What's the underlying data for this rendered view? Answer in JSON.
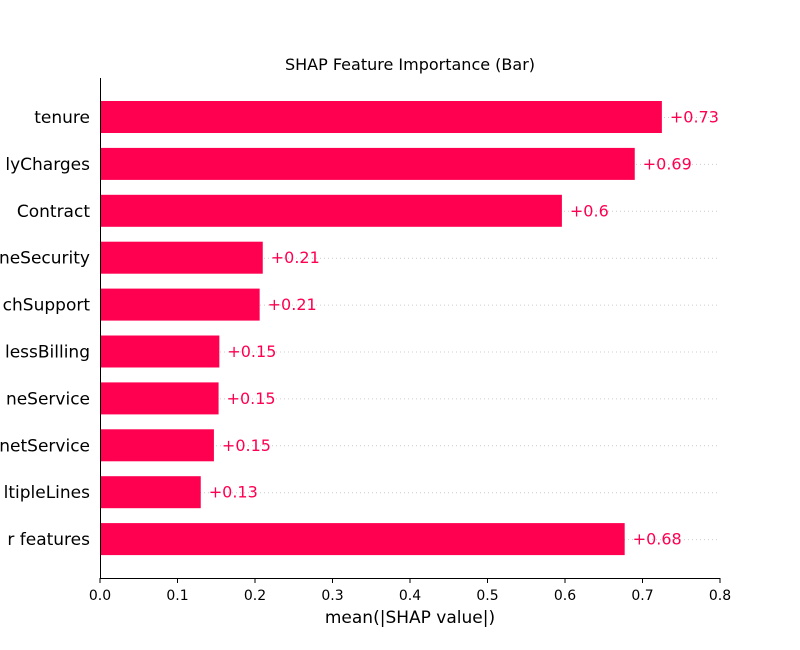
{
  "chart_data": {
    "type": "bar",
    "orientation": "horizontal",
    "title": "SHAP Feature Importance (Bar)",
    "xlabel": "mean(|SHAP value|)",
    "ylabel": "",
    "xlim": [
      0.0,
      0.8
    ],
    "xticks": [
      "0.0",
      "0.1",
      "0.2",
      "0.3",
      "0.4",
      "0.5",
      "0.6",
      "0.7",
      "0.8"
    ],
    "grid": false,
    "bar_color": "#ff0051",
    "categories": [
      "tenure",
      "lyCharges",
      "Contract",
      "neSecurity",
      "chSupport",
      "lessBilling",
      "neService",
      "netService",
      "ltipleLines",
      "r features"
    ],
    "values": [
      0.725,
      0.69,
      0.596,
      0.21,
      0.206,
      0.154,
      0.153,
      0.147,
      0.13,
      0.677
    ],
    "value_labels": [
      "+0.73",
      "+0.69",
      "+0.6",
      "+0.21",
      "+0.21",
      "+0.15",
      "+0.15",
      "+0.15",
      "+0.13",
      "+0.68"
    ]
  }
}
